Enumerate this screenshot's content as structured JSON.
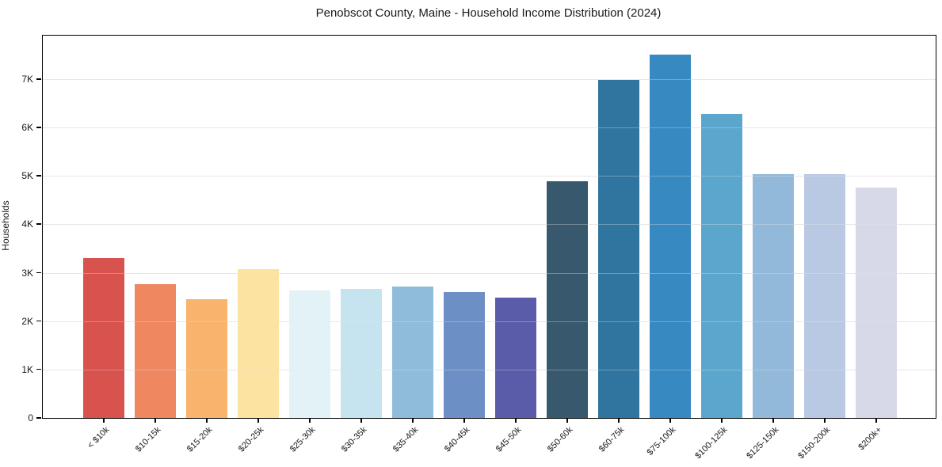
{
  "chart_data": {
    "type": "bar",
    "title": "Penobscot County, Maine - Household Income Distribution (2024)",
    "xlabel": "",
    "ylabel": "Households",
    "categories": [
      "< $10k",
      "$10-15k",
      "$15-20k",
      "$20-25k",
      "$25-30k",
      "$30-35k",
      "$35-40k",
      "$40-45k",
      "$45-50k",
      "$50-60k",
      "$60-75k",
      "$75-100k",
      "$100-125k",
      "$125-150k",
      "$150-200k",
      "$200k+"
    ],
    "values": [
      3310,
      2760,
      2450,
      3070,
      2640,
      2660,
      2710,
      2600,
      2490,
      4890,
      6980,
      7510,
      6280,
      5040,
      5030,
      4760
    ],
    "bar_colors": [
      "#d8534e",
      "#ef8760",
      "#f8b36d",
      "#fce3a2",
      "#e3f2f7",
      "#c6e4f0",
      "#8fbcdb",
      "#6c90c5",
      "#5a5ca9",
      "#38596d",
      "#2f75a0",
      "#3789c1",
      "#5ba6cd",
      "#92b9da",
      "#bac9e3",
      "#d7d9e8"
    ],
    "ylim": [
      0,
      7900
    ],
    "yticks": [
      0,
      1000,
      2000,
      3000,
      4000,
      5000,
      6000,
      7000
    ],
    "ytick_labels": [
      "0",
      "1K",
      "2K",
      "3K",
      "4K",
      "5K",
      "6K",
      "7K"
    ],
    "grid": "horizontal",
    "legend": "none",
    "colors": {
      "background": "#ffffff",
      "grid": "#e9e9e9",
      "axis": "#000000",
      "text": "#1a1a1a"
    }
  }
}
